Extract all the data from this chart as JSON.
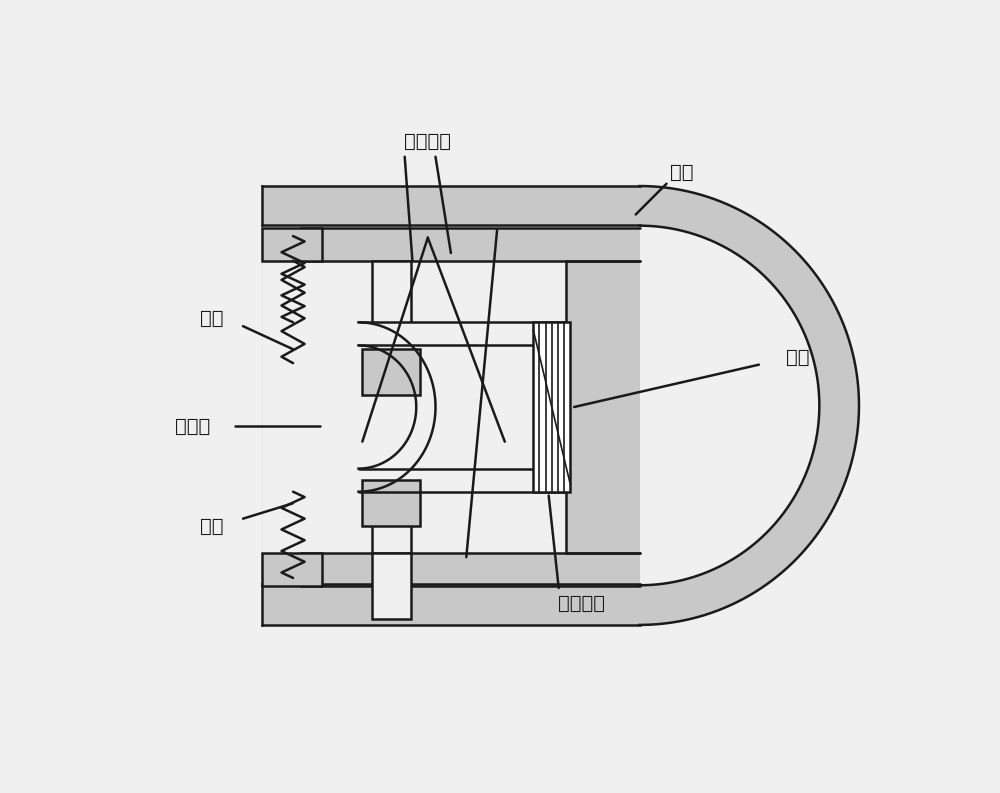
{
  "background_color": "#f0f0f0",
  "line_color": "#1a1a1a",
  "gray_fill": "#a0a0a0",
  "light_gray": "#c8c8c8",
  "white": "#ffffff",
  "labels": {
    "ruanci": "软磁铁芯",
    "keti": "壳体",
    "zhenmo": "振膜",
    "danizao": "阻尼缩",
    "dongjuan": "动圈",
    "xianquan": "线圈",
    "kekedianliu": "可控电流"
  },
  "fig_width": 10.0,
  "fig_height": 7.93
}
